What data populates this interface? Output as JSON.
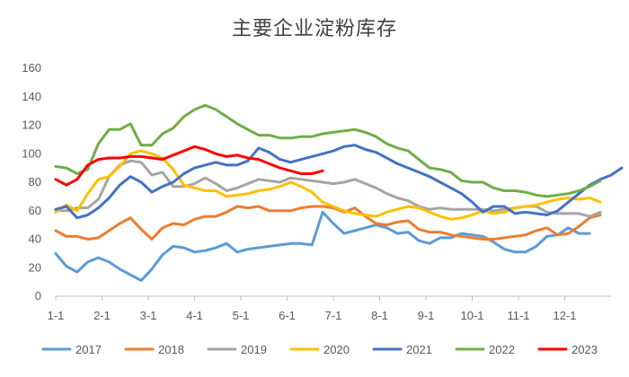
{
  "chart_data": {
    "type": "line",
    "title": "主要企业淀粉库存",
    "xlabel": "",
    "ylabel": "",
    "ylim": [
      0,
      160
    ],
    "yticks": [
      0,
      20,
      40,
      60,
      80,
      100,
      120,
      140,
      160
    ],
    "x_tick_labels": [
      "1-1",
      "2-1",
      "3-1",
      "4-1",
      "5-1",
      "6-1",
      "7-1",
      "8-1",
      "9-1",
      "10-1",
      "11-1",
      "12-1"
    ],
    "weeks_per_year": 52,
    "grid": false,
    "legend": "bottom",
    "series": [
      {
        "name": "2017",
        "color": "#5b9bd5",
        "values": [
          30,
          21,
          17,
          24,
          27,
          24,
          19,
          15,
          11,
          19,
          29,
          35,
          34,
          31,
          32,
          34,
          37,
          31,
          33,
          34,
          35,
          36,
          37,
          37,
          36,
          59,
          51,
          44,
          46,
          48,
          50,
          48,
          44,
          45,
          39,
          37,
          41,
          41,
          44,
          43,
          42,
          38,
          33,
          31,
          31,
          35,
          42,
          43,
          48,
          44,
          44
        ]
      },
      {
        "name": "2018",
        "color": "#ed7d31",
        "values": [
          46,
          42,
          42,
          40,
          41,
          46,
          51,
          55,
          47,
          40,
          48,
          51,
          50,
          54,
          56,
          56,
          59,
          63,
          62,
          63,
          60,
          60,
          60,
          62,
          63,
          63,
          62,
          59,
          62,
          56,
          51,
          50,
          52,
          53,
          47,
          45,
          45,
          43,
          42,
          41,
          40,
          40,
          41,
          42,
          43,
          46,
          48,
          43,
          44,
          49,
          55,
          57
        ]
      },
      {
        "name": "2019",
        "color": "#a5a5a5",
        "values": [
          60,
          60,
          62,
          62,
          68,
          84,
          92,
          95,
          94,
          85,
          87,
          77,
          77,
          79,
          83,
          79,
          74,
          76,
          79,
          82,
          81,
          80,
          83,
          82,
          81,
          80,
          79,
          80,
          82,
          79,
          76,
          72,
          69,
          67,
          63,
          61,
          62,
          61,
          61,
          61,
          61,
          60,
          61,
          62,
          63,
          63,
          59,
          58,
          58,
          58,
          56,
          59
        ]
      },
      {
        "name": "2020",
        "color": "#ffc000",
        "values": [
          59,
          64,
          60,
          72,
          82,
          84,
          91,
          100,
          102,
          100,
          97,
          89,
          78,
          76,
          74,
          74,
          70,
          71,
          72,
          74,
          75,
          77,
          80,
          77,
          73,
          66,
          63,
          60,
          58,
          57,
          56,
          59,
          61,
          63,
          62,
          59,
          56,
          54,
          55,
          57,
          60,
          58,
          59,
          62,
          63,
          64,
          66,
          68,
          69,
          68,
          69,
          66
        ]
      },
      {
        "name": "2021",
        "color": "#4472c4",
        "values": [
          61,
          63,
          55,
          57,
          62,
          69,
          78,
          84,
          80,
          73,
          77,
          80,
          86,
          90,
          92,
          94,
          92,
          92,
          95,
          104,
          101,
          96,
          94,
          96,
          98,
          100,
          102,
          105,
          106,
          103,
          101,
          97,
          93,
          90,
          87,
          84,
          80,
          76,
          72,
          66,
          59,
          63,
          63,
          58,
          59,
          58,
          57,
          60,
          66,
          72,
          78,
          82,
          85,
          90
        ]
      },
      {
        "name": "2022",
        "color": "#70ad47",
        "values": [
          91,
          90,
          86,
          89,
          107,
          117,
          117,
          121,
          106,
          106,
          114,
          118,
          126,
          131,
          134,
          131,
          126,
          121,
          117,
          113,
          113,
          111,
          111,
          112,
          112,
          114,
          115,
          116,
          117,
          115,
          112,
          107,
          104,
          102,
          96,
          90,
          89,
          87,
          81,
          80,
          80,
          76,
          74,
          74,
          73,
          71,
          70,
          71,
          72,
          74,
          77,
          81
        ]
      },
      {
        "name": "2023",
        "color": "#ff0000",
        "values": [
          82,
          78,
          82,
          92,
          96,
          97,
          97,
          98,
          98,
          97,
          96,
          99,
          102,
          105,
          103,
          100,
          98,
          99,
          97,
          96,
          93,
          90,
          88,
          86,
          86,
          88
        ]
      }
    ]
  }
}
